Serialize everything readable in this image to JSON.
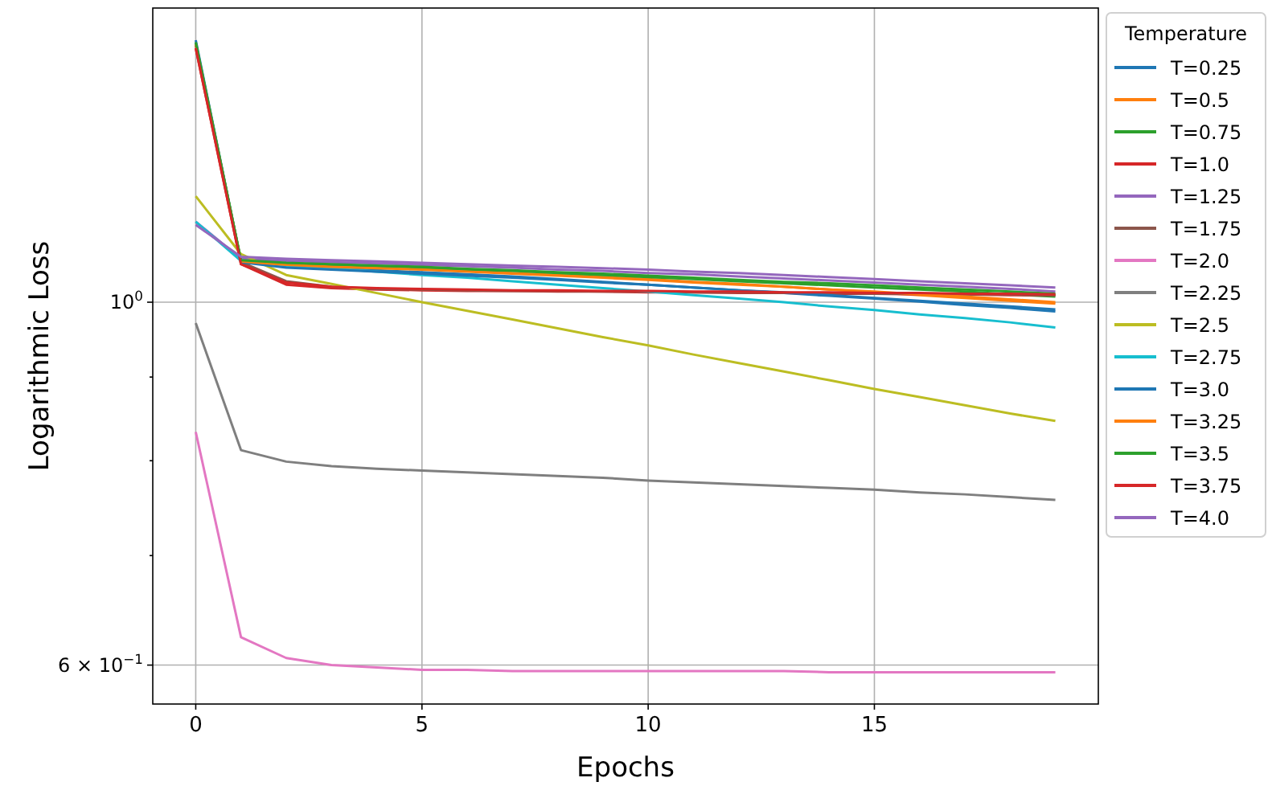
{
  "chart_data": {
    "type": "line",
    "xlabel": "Epochs",
    "ylabel": "Logarithmic Loss",
    "legend_title": "Temperature",
    "legend": "top right",
    "log": "y",
    "grid": true,
    "x": [
      0,
      1,
      2,
      3,
      4,
      5,
      6,
      7,
      8,
      9,
      10,
      11,
      12,
      13,
      14,
      15,
      16,
      17,
      18,
      19
    ],
    "xlim": [
      -0.95,
      19.95
    ],
    "xticks": [
      0,
      5,
      10,
      15
    ],
    "ylim": [
      0.568,
      1.513
    ],
    "yticks": [
      {
        "value": 0.6,
        "label": "6 × 10$^{−1}$"
      },
      {
        "value": 0.7,
        "label": null
      },
      {
        "value": 0.8,
        "label": null
      },
      {
        "value": 0.9,
        "label": null
      },
      {
        "value": 1,
        "label": "10$^{0}$"
      }
    ],
    "series": [
      {
        "name": "T=0.25",
        "color": "#1f77b4",
        "values": [
          1.446,
          1.06,
          1.052,
          1.049,
          1.046,
          1.043,
          1.04,
          1.037,
          1.033,
          1.029,
          1.025,
          1.021,
          1.017,
          1.013,
          1.009,
          1.005,
          1.001,
          0.996,
          0.992,
          0.987
        ]
      },
      {
        "name": "T=0.5",
        "color": "#ff7f0e",
        "values": [
          1.44,
          1.06,
          1.055,
          1.052,
          1.05,
          1.048,
          1.045,
          1.042,
          1.039,
          1.036,
          1.033,
          1.029,
          1.026,
          1.022,
          1.018,
          1.014,
          1.01,
          1.006,
          1.002,
          0.998
        ]
      },
      {
        "name": "T=0.75",
        "color": "#2ca02c",
        "values": [
          1.44,
          1.06,
          1.056,
          1.054,
          1.052,
          1.05,
          1.047,
          1.045,
          1.042,
          1.039,
          1.036,
          1.033,
          1.03,
          1.027,
          1.024,
          1.021,
          1.018,
          1.015,
          1.011,
          1.008
        ]
      },
      {
        "name": "T=1.0",
        "color": "#d62728",
        "values": [
          1.43,
          1.055,
          1.025,
          1.02,
          1.018,
          1.017,
          1.016,
          1.016,
          1.015,
          1.015,
          1.014,
          1.014,
          1.013,
          1.013,
          1.012,
          1.012,
          1.011,
          1.011,
          1.01,
          1.01
        ]
      },
      {
        "name": "T=1.25",
        "color": "#9467bd",
        "values": [
          1.12,
          1.063,
          1.06,
          1.058,
          1.056,
          1.054,
          1.052,
          1.05,
          1.047,
          1.045,
          1.042,
          1.04,
          1.037,
          1.034,
          1.031,
          1.028,
          1.025,
          1.022,
          1.019,
          1.015
        ]
      },
      {
        "name": "T=1.75",
        "color": "#8c564b",
        "values": [
          1.435,
          1.058,
          1.03,
          1.022,
          1.019,
          1.018,
          1.017,
          1.016,
          1.016,
          1.015,
          1.015,
          1.014,
          1.014,
          1.013,
          1.013,
          1.012,
          1.012,
          1.011,
          1.011,
          1.01
        ]
      },
      {
        "name": "T=2.0",
        "color": "#e377c2",
        "values": [
          0.833,
          0.624,
          0.606,
          0.6,
          0.598,
          0.596,
          0.596,
          0.595,
          0.595,
          0.595,
          0.595,
          0.595,
          0.595,
          0.595,
          0.594,
          0.594,
          0.594,
          0.594,
          0.594,
          0.594
        ]
      },
      {
        "name": "T=2.25",
        "color": "#7f7f7f",
        "values": [
          0.971,
          0.812,
          0.799,
          0.794,
          0.791,
          0.789,
          0.787,
          0.785,
          0.783,
          0.781,
          0.778,
          0.776,
          0.774,
          0.772,
          0.77,
          0.768,
          0.765,
          0.763,
          0.76,
          0.757
        ]
      },
      {
        "name": "T=2.5",
        "color": "#bcbd22",
        "values": [
          1.161,
          1.07,
          1.039,
          1.026,
          1.013,
          1.0,
          0.988,
          0.976,
          0.964,
          0.952,
          0.941,
          0.929,
          0.918,
          0.907,
          0.896,
          0.885,
          0.875,
          0.865,
          0.855,
          0.846
        ]
      },
      {
        "name": "T=2.75",
        "color": "#17becf",
        "values": [
          1.12,
          1.06,
          1.053,
          1.049,
          1.044,
          1.039,
          1.035,
          1.03,
          1.025,
          1.02,
          1.015,
          1.01,
          1.005,
          1.0,
          0.994,
          0.989,
          0.983,
          0.978,
          0.972,
          0.965
        ]
      },
      {
        "name": "T=3.0",
        "color": "#1f77b4",
        "values": [
          1.44,
          1.058,
          1.05,
          1.047,
          1.044,
          1.041,
          1.038,
          1.035,
          1.032,
          1.028,
          1.025,
          1.021,
          1.017,
          1.014,
          1.01,
          1.006,
          1.002,
          0.998,
          0.994,
          0.99
        ]
      },
      {
        "name": "T=3.25",
        "color": "#ff7f0e",
        "values": [
          1.438,
          1.059,
          1.054,
          1.051,
          1.049,
          1.047,
          1.044,
          1.041,
          1.038,
          1.035,
          1.032,
          1.028,
          1.025,
          1.022,
          1.018,
          1.015,
          1.011,
          1.008,
          1.004,
          1.0
        ]
      },
      {
        "name": "T=3.5",
        "color": "#2ca02c",
        "values": [
          1.442,
          1.061,
          1.057,
          1.055,
          1.053,
          1.051,
          1.048,
          1.046,
          1.043,
          1.041,
          1.038,
          1.035,
          1.032,
          1.029,
          1.027,
          1.024,
          1.021,
          1.018,
          1.015,
          1.012
        ]
      },
      {
        "name": "T=3.75",
        "color": "#d62728",
        "values": [
          1.43,
          1.055,
          1.028,
          1.022,
          1.02,
          1.019,
          1.018,
          1.017,
          1.017,
          1.016,
          1.016,
          1.015,
          1.015,
          1.014,
          1.014,
          1.013,
          1.013,
          1.012,
          1.012,
          1.011
        ]
      },
      {
        "name": "T=4.0",
        "color": "#9467bd",
        "values": [
          1.115,
          1.066,
          1.063,
          1.061,
          1.059,
          1.057,
          1.055,
          1.053,
          1.051,
          1.049,
          1.047,
          1.044,
          1.042,
          1.039,
          1.036,
          1.033,
          1.03,
          1.027,
          1.024,
          1.021
        ]
      }
    ]
  }
}
